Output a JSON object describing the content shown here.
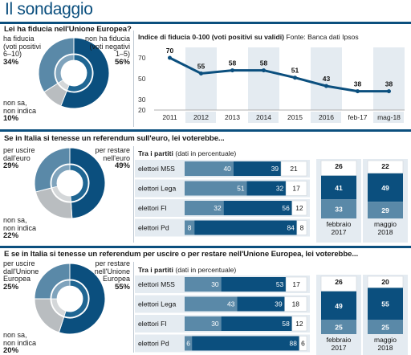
{
  "header": {
    "title": "Il sondaggio"
  },
  "colors": {
    "navy": "#0b4f7e",
    "mid": "#5a89a8",
    "light_gray": "#b9bdc0",
    "white": "#ffffff",
    "panel_bg": "#e4ebf1",
    "line": "#0b4f7e"
  },
  "section1": {
    "question": "Lei ha fiducia nell'Unione Europea?",
    "donut": {
      "left_label": "ha fiducia (voti positivi 6–10)",
      "left_l1": "ha fiducia",
      "left_l2": "(voti positivi",
      "left_l3": "6–10)",
      "left_pct": "34%",
      "right_l1": "non ha fiducia",
      "right_l2": "(voti negativi",
      "right_l3": "1–5)",
      "right_pct": "56%",
      "other_l1": "non sa,",
      "other_l2": "non indica",
      "other_pct": "10%",
      "values": {
        "positive": 34,
        "negative": 56,
        "unknown": 10
      }
    },
    "line_title_bold": "Indice di fiducia 0-100 (voti positivi su validi)",
    "line_title_src": "Fonte: Banca dati Ipsos"
  },
  "section2": {
    "question": "Se in Italia si tenesse un referendum sull'euro, lei voterebbe...",
    "donut": {
      "left_l1": "per uscire",
      "left_l2": "dall'euro",
      "left_pct": "29%",
      "right_l1": "per restare",
      "right_l2": "nell'euro",
      "right_pct": "49%",
      "other_l1": "non sa,",
      "other_l2": "non indica",
      "other_pct": "22%",
      "values": {
        "exit": 29,
        "stay": 49,
        "unknown": 22
      }
    },
    "party_title_bold": "Tra i partiti",
    "party_title_rest": "(dati in percentuale)"
  },
  "section3": {
    "question": "E se in Italia si tenesse un referendum per uscire o per restare nell'Unione Europea, lei voterebbe...",
    "donut": {
      "left_l1": "per uscire",
      "left_l2": "dall'Unione",
      "left_l3": "Europea",
      "left_pct": "25%",
      "right_l1": "per restare",
      "right_l2": "nell'Unione",
      "right_l3": "Europea",
      "right_pct": "55%",
      "other_l1": "non sa,",
      "other_l2": "non indica",
      "other_pct": "20%",
      "values": {
        "exit": 25,
        "stay": 55,
        "unknown": 20
      }
    },
    "party_title_bold": "Tra i partiti",
    "party_title_rest": "(dati in percentuale)"
  },
  "chart_data": [
    {
      "type": "line",
      "title": "Indice di fiducia 0-100 (voti positivi su validi)",
      "source": "Fonte: Banca dati Ipsos",
      "x": [
        "2011",
        "2012",
        "2013",
        "2014",
        "2015",
        "2016",
        "feb-17",
        "mag-18"
      ],
      "values": [
        70,
        55,
        58,
        58,
        51,
        43,
        38,
        38
      ],
      "y_ticks": [
        70,
        50,
        30,
        20
      ],
      "ylim": [
        20,
        80
      ]
    },
    {
      "type": "bar",
      "stacked": true,
      "title": "Tra i partiti (dati in percentuale)",
      "categories": [
        "elettori M5S",
        "elettori Lega",
        "elettori FI",
        "elettori Pd"
      ],
      "series": [
        {
          "values": [
            40,
            51,
            32,
            8
          ]
        },
        {
          "values": [
            39,
            32,
            56,
            84
          ]
        },
        {
          "values": [
            21,
            17,
            12,
            8
          ]
        }
      ],
      "columns": {
        "periods": [
          "febbraio 2017",
          "maggio 2018"
        ],
        "period_l1": [
          "febbraio",
          "maggio"
        ],
        "period_l2": [
          "2017",
          "2018"
        ],
        "top": [
          26,
          22
        ],
        "middle": [
          41,
          49
        ],
        "bottom": [
          33,
          29
        ]
      }
    },
    {
      "type": "bar",
      "stacked": true,
      "title": "Tra i partiti (dati in percentuale)",
      "categories": [
        "elettori M5S",
        "elettori Lega",
        "elettori FI",
        "elettori Pd"
      ],
      "series": [
        {
          "values": [
            30,
            43,
            30,
            6
          ]
        },
        {
          "values": [
            53,
            39,
            58,
            88
          ]
        },
        {
          "values": [
            17,
            18,
            12,
            6
          ]
        }
      ],
      "columns": {
        "periods": [
          "febbraio 2017",
          "maggio 2018"
        ],
        "period_l1": [
          "febbraio",
          "maggio"
        ],
        "period_l2": [
          "2017",
          "2018"
        ],
        "top": [
          26,
          20
        ],
        "middle": [
          49,
          55
        ],
        "bottom": [
          25,
          25
        ]
      }
    }
  ]
}
